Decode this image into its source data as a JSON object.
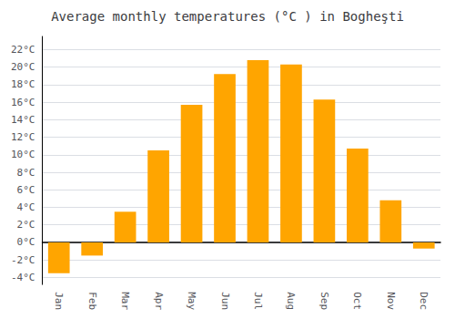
{
  "chart_data": {
    "type": "bar",
    "title": "Average monthly temperatures (°C ) in Bogheşti",
    "categories": [
      "Jan",
      "Feb",
      "Mar",
      "Apr",
      "May",
      "Jun",
      "Jul",
      "Aug",
      "Sep",
      "Oct",
      "Nov",
      "Dec"
    ],
    "values": [
      -3.5,
      -1.5,
      3.5,
      10.5,
      15.7,
      19.2,
      20.8,
      20.3,
      16.3,
      10.7,
      4.8,
      -0.7
    ],
    "color": "#FFA500",
    "ylim": [
      -4.8,
      23.5
    ],
    "yticks": [
      {
        "value": -4,
        "label": "-4°C"
      },
      {
        "value": -2,
        "label": "-2°C"
      },
      {
        "value": 0,
        "label": "0°C"
      },
      {
        "value": 2,
        "label": "2°C"
      },
      {
        "value": 4,
        "label": "4°C"
      },
      {
        "value": 6,
        "label": "6°C"
      },
      {
        "value": 8,
        "label": "8°C"
      },
      {
        "value": 10,
        "label": "10°C"
      },
      {
        "value": 12,
        "label": "12°C"
      },
      {
        "value": 14,
        "label": "14°C"
      },
      {
        "value": 16,
        "label": "16°C"
      },
      {
        "value": 18,
        "label": "18°C"
      },
      {
        "value": 20,
        "label": "20°C"
      },
      {
        "value": 22,
        "label": "22°C"
      }
    ],
    "grid": true
  }
}
